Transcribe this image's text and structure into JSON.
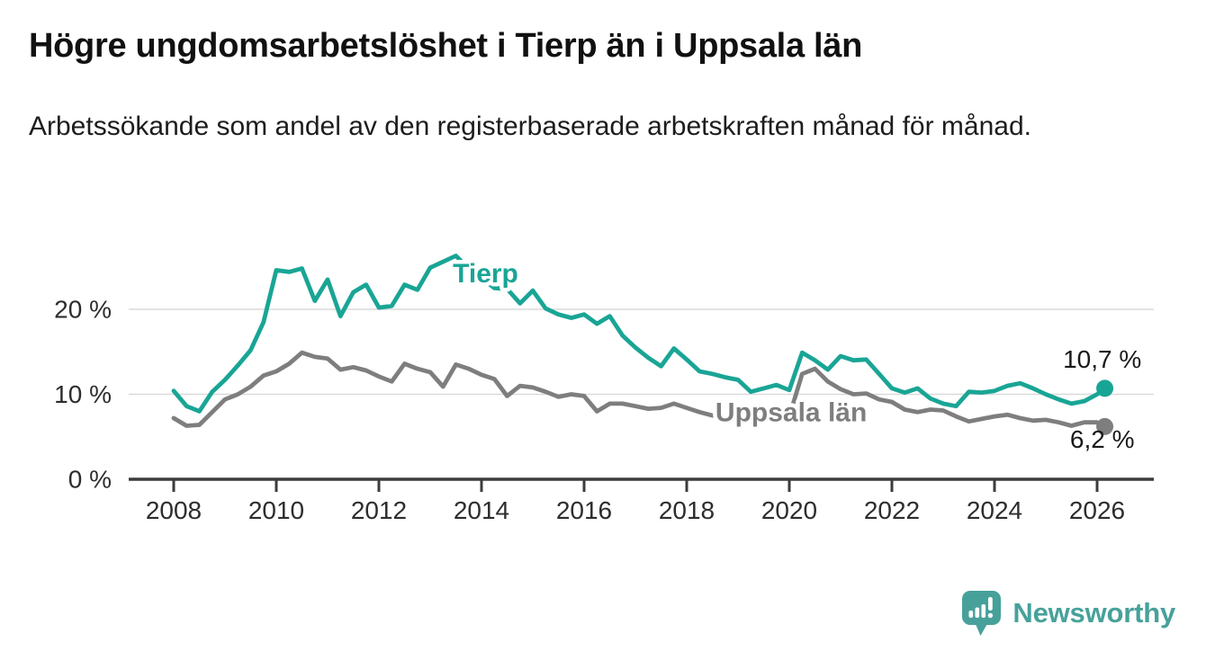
{
  "header": {
    "title": "Högre ungdomsarbetslöshet i Tierp än i Uppsala län",
    "subtitle": "Arbetssökande som andel av den registerbaserade arbetskraften månad för månad."
  },
  "footer": {
    "brand": "Newsworthy",
    "logo_icon": "newsworthy-speech-bubble-bar-chart-icon"
  },
  "colors": {
    "tierp_line": "#19A595",
    "uppsala_line": "#7E7E7E",
    "brand_teal": "#47A19A",
    "axis": "#3C3C3C",
    "grid": "#DADADA",
    "tick_text": "#2D2D2D",
    "annotation_text": "#1A1A1A"
  },
  "chart_data": {
    "type": "line",
    "title": "Högre ungdomsarbetslöshet i Tierp än i Uppsala län",
    "subtitle": "Arbetssökande som andel av den registerbaserade arbetskraften månad för månad.",
    "xlabel": "",
    "ylabel": "",
    "grid": "horizontal",
    "legend": "inline-series-labels",
    "xlim": [
      2007.1,
      2027.15
    ],
    "ylim": [
      0,
      27.5
    ],
    "xticks": [
      2008,
      2010,
      2012,
      2014,
      2016,
      2018,
      2020,
      2022,
      2024,
      2026
    ],
    "yticks": [
      {
        "value": 0,
        "label": "0 %"
      },
      {
        "value": 10,
        "label": "10 %"
      },
      {
        "value": 20,
        "label": "20 %"
      }
    ],
    "x": [
      2008,
      2008.25,
      2008.5,
      2008.75,
      2009,
      2009.25,
      2009.5,
      2009.75,
      2010,
      2010.25,
      2010.5,
      2010.75,
      2011,
      2011.25,
      2011.5,
      2011.75,
      2012,
      2012.25,
      2012.5,
      2012.75,
      2013,
      2013.25,
      2013.5,
      2013.75,
      2014,
      2014.25,
      2014.5,
      2014.75,
      2015,
      2015.25,
      2015.5,
      2015.75,
      2016,
      2016.25,
      2016.5,
      2016.75,
      2017,
      2017.25,
      2017.5,
      2017.75,
      2018,
      2018.25,
      2018.5,
      2018.75,
      2019,
      2019.25,
      2019.5,
      2019.75,
      2020,
      2020.25,
      2020.5,
      2020.75,
      2021,
      2021.25,
      2021.5,
      2021.75,
      2022,
      2022.25,
      2022.5,
      2022.75,
      2023,
      2023.25,
      2023.5,
      2023.75,
      2024,
      2024.25,
      2024.5,
      2024.75,
      2025,
      2025.25,
      2025.5,
      2025.75,
      2026,
      2026.15
    ],
    "series": [
      {
        "name": "Tierp",
        "color": "#19A595",
        "end_value_label": "10,7 %",
        "values": [
          10.4,
          8.6,
          8.0,
          10.3,
          11.7,
          13.4,
          15.2,
          18.5,
          24.6,
          24.4,
          24.8,
          21.0,
          23.5,
          19.2,
          22.0,
          22.9,
          20.2,
          20.4,
          22.9,
          22.3,
          24.9,
          25.6,
          26.3,
          24.8,
          23.7,
          22.5,
          22.4,
          20.7,
          22.2,
          20.1,
          19.4,
          19.0,
          19.4,
          18.3,
          19.2,
          16.9,
          15.5,
          14.3,
          13.3,
          15.4,
          14.1,
          12.7,
          12.4,
          12.0,
          11.7,
          10.3,
          10.7,
          11.1,
          10.5,
          14.9,
          14.0,
          12.9,
          14.5,
          14.0,
          14.1,
          12.4,
          10.7,
          10.2,
          10.7,
          9.5,
          8.9,
          8.6,
          10.3,
          10.2,
          10.4,
          11.0,
          11.3,
          10.7,
          10.0,
          9.4,
          8.9,
          9.2,
          10.0,
          10.7
        ]
      },
      {
        "name": "Uppsala län",
        "color": "#7E7E7E",
        "end_value_label": "6,2 %",
        "values": [
          7.2,
          6.3,
          6.4,
          7.9,
          9.4,
          10.0,
          10.9,
          12.2,
          12.7,
          13.6,
          14.9,
          14.4,
          14.2,
          12.9,
          13.2,
          12.8,
          12.1,
          11.5,
          13.6,
          13.0,
          12.6,
          10.9,
          13.5,
          13.0,
          12.3,
          11.8,
          9.8,
          11.0,
          10.8,
          10.3,
          9.7,
          10.0,
          9.8,
          8.0,
          8.9,
          8.9,
          8.6,
          8.3,
          8.4,
          8.9,
          8.4,
          7.9,
          7.5,
          7.4,
          7.4,
          7.3,
          7.3,
          7.2,
          7.4,
          12.4,
          13.0,
          11.5,
          10.6,
          10.0,
          10.1,
          9.4,
          9.1,
          8.2,
          7.9,
          8.2,
          8.1,
          7.4,
          6.8,
          7.1,
          7.4,
          7.6,
          7.2,
          6.9,
          7.0,
          6.7,
          6.3,
          6.7,
          6.7,
          6.2
        ]
      }
    ],
    "series_labels": [
      {
        "series": "Tierp",
        "text": "Tierp",
        "x": 2013.44,
        "y": 23.2,
        "anchor": "start"
      },
      {
        "series": "Uppsala län",
        "text": "Uppsala län",
        "x": 2018.56,
        "y": 6.8,
        "anchor": "start"
      }
    ],
    "annotations": [
      {
        "text": "10,7 %",
        "x": 2026.1,
        "y": 13.1,
        "anchor": "middle"
      },
      {
        "text": "6,2 %",
        "x": 2026.1,
        "y": 3.7,
        "anchor": "middle"
      }
    ]
  }
}
